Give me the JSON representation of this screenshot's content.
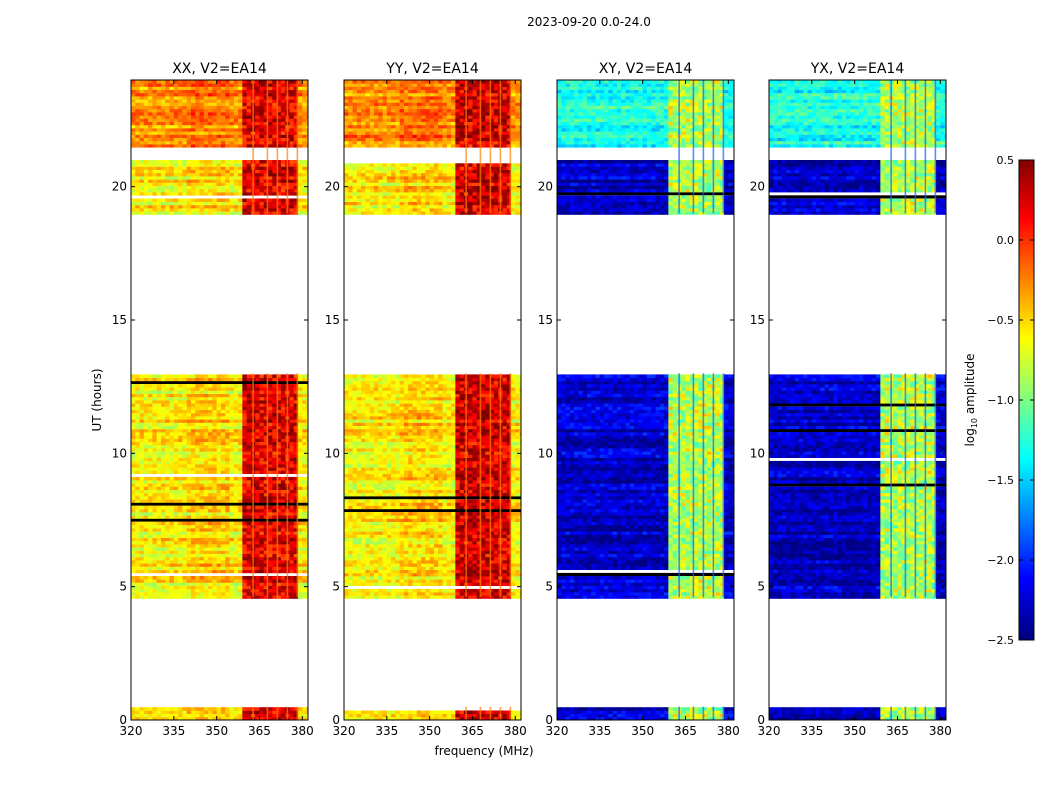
{
  "chart_data": {
    "type": "heatmap",
    "title": "2023-09-20 0.0-24.0",
    "xlabel": "frequency (MHz)",
    "ylabel": "UT (hours)",
    "xlim": [
      320,
      382
    ],
    "ylim": [
      0,
      24
    ],
    "x_ticks": [
      320,
      335,
      350,
      365,
      380
    ],
    "y_ticks": [
      0,
      5,
      10,
      15,
      20
    ],
    "colorbar": {
      "label": "log10 amplitude",
      "label_main": "log",
      "label_sub": "10",
      "label_rest": " amplitude",
      "range": [
        -2.5,
        0.5
      ],
      "ticks": [
        0.5,
        0.0,
        -0.5,
        -1.0,
        -1.5,
        -2.0,
        -2.5
      ],
      "tick_labels": [
        "0.5",
        "0.0",
        "−0.5",
        "−1.0",
        "−1.5",
        "−2.0",
        "−2.5"
      ],
      "colormap": "jet"
    },
    "data_time_ranges": [
      [
        0.0,
        0.5
      ],
      [
        4.6,
        13.0
      ],
      [
        19.0,
        24.0
      ]
    ],
    "gap_time_ranges": [
      [
        0.5,
        4.6
      ],
      [
        13.0,
        19.0
      ],
      [
        21.0,
        21.5
      ]
    ],
    "rfi_band_mhz": [
      359,
      379
    ],
    "panels": [
      {
        "id": "xx",
        "title": "XX, V2=EA14",
        "polarization": "XX",
        "baseline": "EA14",
        "base_level": -0.6,
        "rfi_level": 0.2
      },
      {
        "id": "yy",
        "title": "YY, V2=EA14",
        "polarization": "YY",
        "baseline": "EA14",
        "base_level": -0.6,
        "rfi_level": 0.25
      },
      {
        "id": "xy",
        "title": "XY, V2=EA14",
        "polarization": "XY",
        "baseline": "EA14",
        "base_level": -2.3,
        "rfi_level": -0.8
      },
      {
        "id": "yx",
        "title": "YX, V2=EA14",
        "polarization": "YX",
        "baseline": "EA14",
        "base_level": -2.3,
        "rfi_level": -0.8
      }
    ]
  }
}
